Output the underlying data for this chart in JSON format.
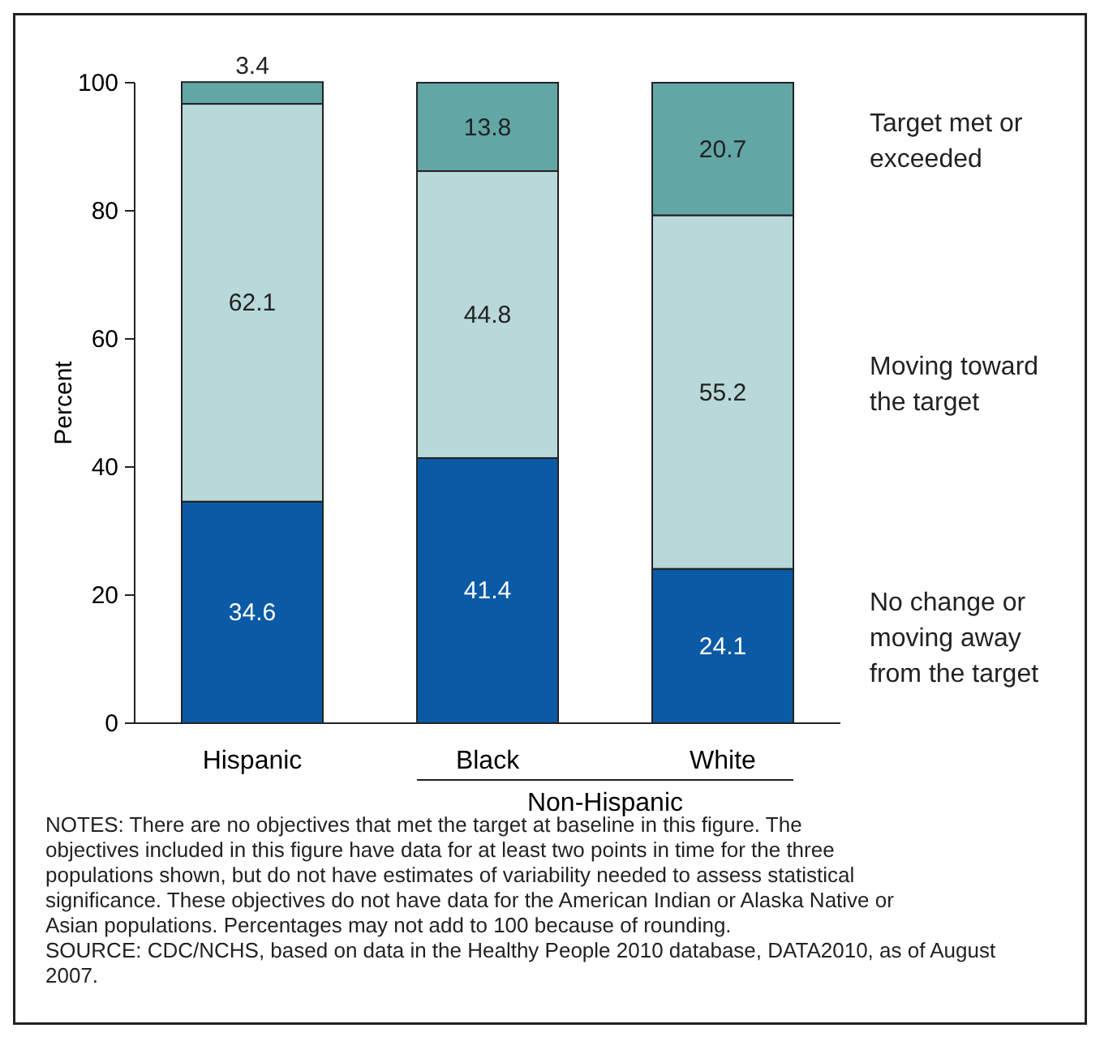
{
  "chart_data": {
    "type": "bar",
    "stacked": true,
    "ylabel": "Percent",
    "categories": [
      "Hispanic",
      "Black",
      "White"
    ],
    "series": [
      {
        "name": "No change or moving away from the target",
        "color": "#0b5aa6",
        "values": [
          34.6,
          41.4,
          24.1
        ]
      },
      {
        "name": "Moving toward the target",
        "color": "#b8d8d9",
        "values": [
          62.1,
          44.8,
          55.2
        ]
      },
      {
        "name": "Target met or exceeded",
        "color": "#62a6a6",
        "values": [
          3.4,
          13.8,
          20.7
        ]
      }
    ],
    "ylim": [
      0,
      100
    ],
    "yticks": [
      0,
      20,
      40,
      60,
      80,
      100
    ],
    "grid": false,
    "data_labels": true,
    "annotations": [
      "Non-Hispanic",
      "NOTES: There are no objectives that met the target at baseline in this figure. The objectives included in this figure have data for at least two points in time for the three populations shown, but do not have estimates of variability needed to assess statistical significance. These objectives do not have data for the American Indian or Alaska Native or Asian populations. Percentages may not add to 100 because of rounding.",
      "SOURCE: CDC/NCHS, based on data in the Healthy People 2010 database, DATA2010, as of August 2007."
    ]
  }
}
